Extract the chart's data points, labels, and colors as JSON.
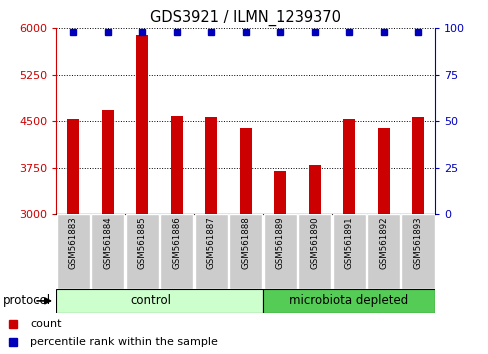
{
  "title": "GDS3921 / ILMN_1239370",
  "samples": [
    "GSM561883",
    "GSM561884",
    "GSM561885",
    "GSM561886",
    "GSM561887",
    "GSM561888",
    "GSM561889",
    "GSM561890",
    "GSM561891",
    "GSM561892",
    "GSM561893"
  ],
  "counts": [
    4530,
    4680,
    5900,
    4580,
    4570,
    4390,
    3700,
    3790,
    4530,
    4390,
    4570
  ],
  "percentile_ranks": [
    98,
    98,
    98,
    98,
    98,
    98,
    98,
    98,
    98,
    98,
    98
  ],
  "ylim_left": [
    3000,
    6000
  ],
  "ylim_right": [
    0,
    100
  ],
  "yticks_left": [
    3000,
    3750,
    4500,
    5250,
    6000
  ],
  "yticks_right": [
    0,
    25,
    50,
    75,
    100
  ],
  "bar_color": "#cc0000",
  "dot_color": "#0000bb",
  "n_control": 6,
  "control_label": "control",
  "microbiota_label": "microbiota depleted",
  "protocol_label": "protocol",
  "legend_count_label": "count",
  "legend_percentile_label": "percentile rank within the sample",
  "control_color": "#ccffcc",
  "microbiota_color": "#55cc55",
  "left_tick_color": "#cc0000",
  "right_tick_color": "#0000bb",
  "sample_box_color": "#cccccc",
  "background_color": "#ffffff"
}
